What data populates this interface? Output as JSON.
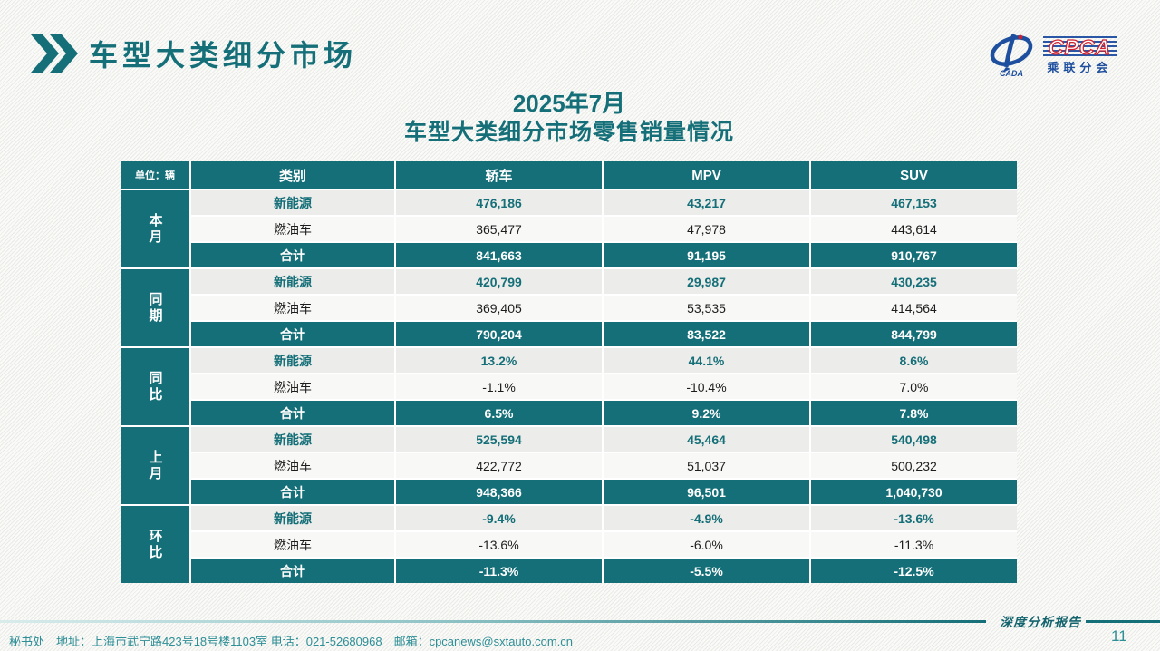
{
  "page": {
    "title": "车型大类细分市场",
    "table_title_line1": "2025年7月",
    "table_title_line2": "车型大类细分市场零售销量情况",
    "report_label": "深度分析报告",
    "page_number": "11",
    "contact": "秘书处　地址：上海市武宁路423号18号楼1103室 电话：021-52680968　邮箱：cpcanews@sxtauto.com.cn"
  },
  "logo": {
    "name": "CPCA",
    "subname": "乘联分会",
    "mark_small_text": "CADA"
  },
  "watermark": {
    "big": "CPCA",
    "small": "乘联分会"
  },
  "colors": {
    "accent_teal": "#156f78",
    "footer_teal": "#2e8f96",
    "logo_blue": "#1d4f9e",
    "logo_red": "#cf2030",
    "row_nev_bg": "#ececea",
    "row_fuel_bg": "#f8f8f6"
  },
  "table": {
    "unit_label": "单位：辆",
    "col_headers": [
      "类别",
      "轿车",
      "MPV",
      "SUV"
    ],
    "groups": [
      {
        "label": "本月",
        "rows": [
          {
            "label": "新能源",
            "values": [
              "476,186",
              "43,217",
              "467,153"
            ]
          },
          {
            "label": "燃油车",
            "values": [
              "365,477",
              "47,978",
              "443,614"
            ]
          },
          {
            "label": "合计",
            "values": [
              "841,663",
              "91,195",
              "910,767"
            ]
          }
        ]
      },
      {
        "label": "同期",
        "rows": [
          {
            "label": "新能源",
            "values": [
              "420,799",
              "29,987",
              "430,235"
            ]
          },
          {
            "label": "燃油车",
            "values": [
              "369,405",
              "53,535",
              "414,564"
            ]
          },
          {
            "label": "合计",
            "values": [
              "790,204",
              "83,522",
              "844,799"
            ]
          }
        ]
      },
      {
        "label": "同比",
        "rows": [
          {
            "label": "新能源",
            "values": [
              "13.2%",
              "44.1%",
              "8.6%"
            ]
          },
          {
            "label": "燃油车",
            "values": [
              "-1.1%",
              "-10.4%",
              "7.0%"
            ]
          },
          {
            "label": "合计",
            "values": [
              "6.5%",
              "9.2%",
              "7.8%"
            ]
          }
        ]
      },
      {
        "label": "上月",
        "rows": [
          {
            "label": "新能源",
            "values": [
              "525,594",
              "45,464",
              "540,498"
            ]
          },
          {
            "label": "燃油车",
            "values": [
              "422,772",
              "51,037",
              "500,232"
            ]
          },
          {
            "label": "合计",
            "values": [
              "948,366",
              "96,501",
              "1,040,730"
            ]
          }
        ]
      },
      {
        "label": "环比",
        "rows": [
          {
            "label": "新能源",
            "values": [
              "-9.4%",
              "-4.9%",
              "-13.6%"
            ]
          },
          {
            "label": "燃油车",
            "values": [
              "-13.6%",
              "-6.0%",
              "-11.3%"
            ]
          },
          {
            "label": "合计",
            "values": [
              "-11.3%",
              "-5.5%",
              "-12.5%"
            ]
          }
        ]
      }
    ]
  }
}
